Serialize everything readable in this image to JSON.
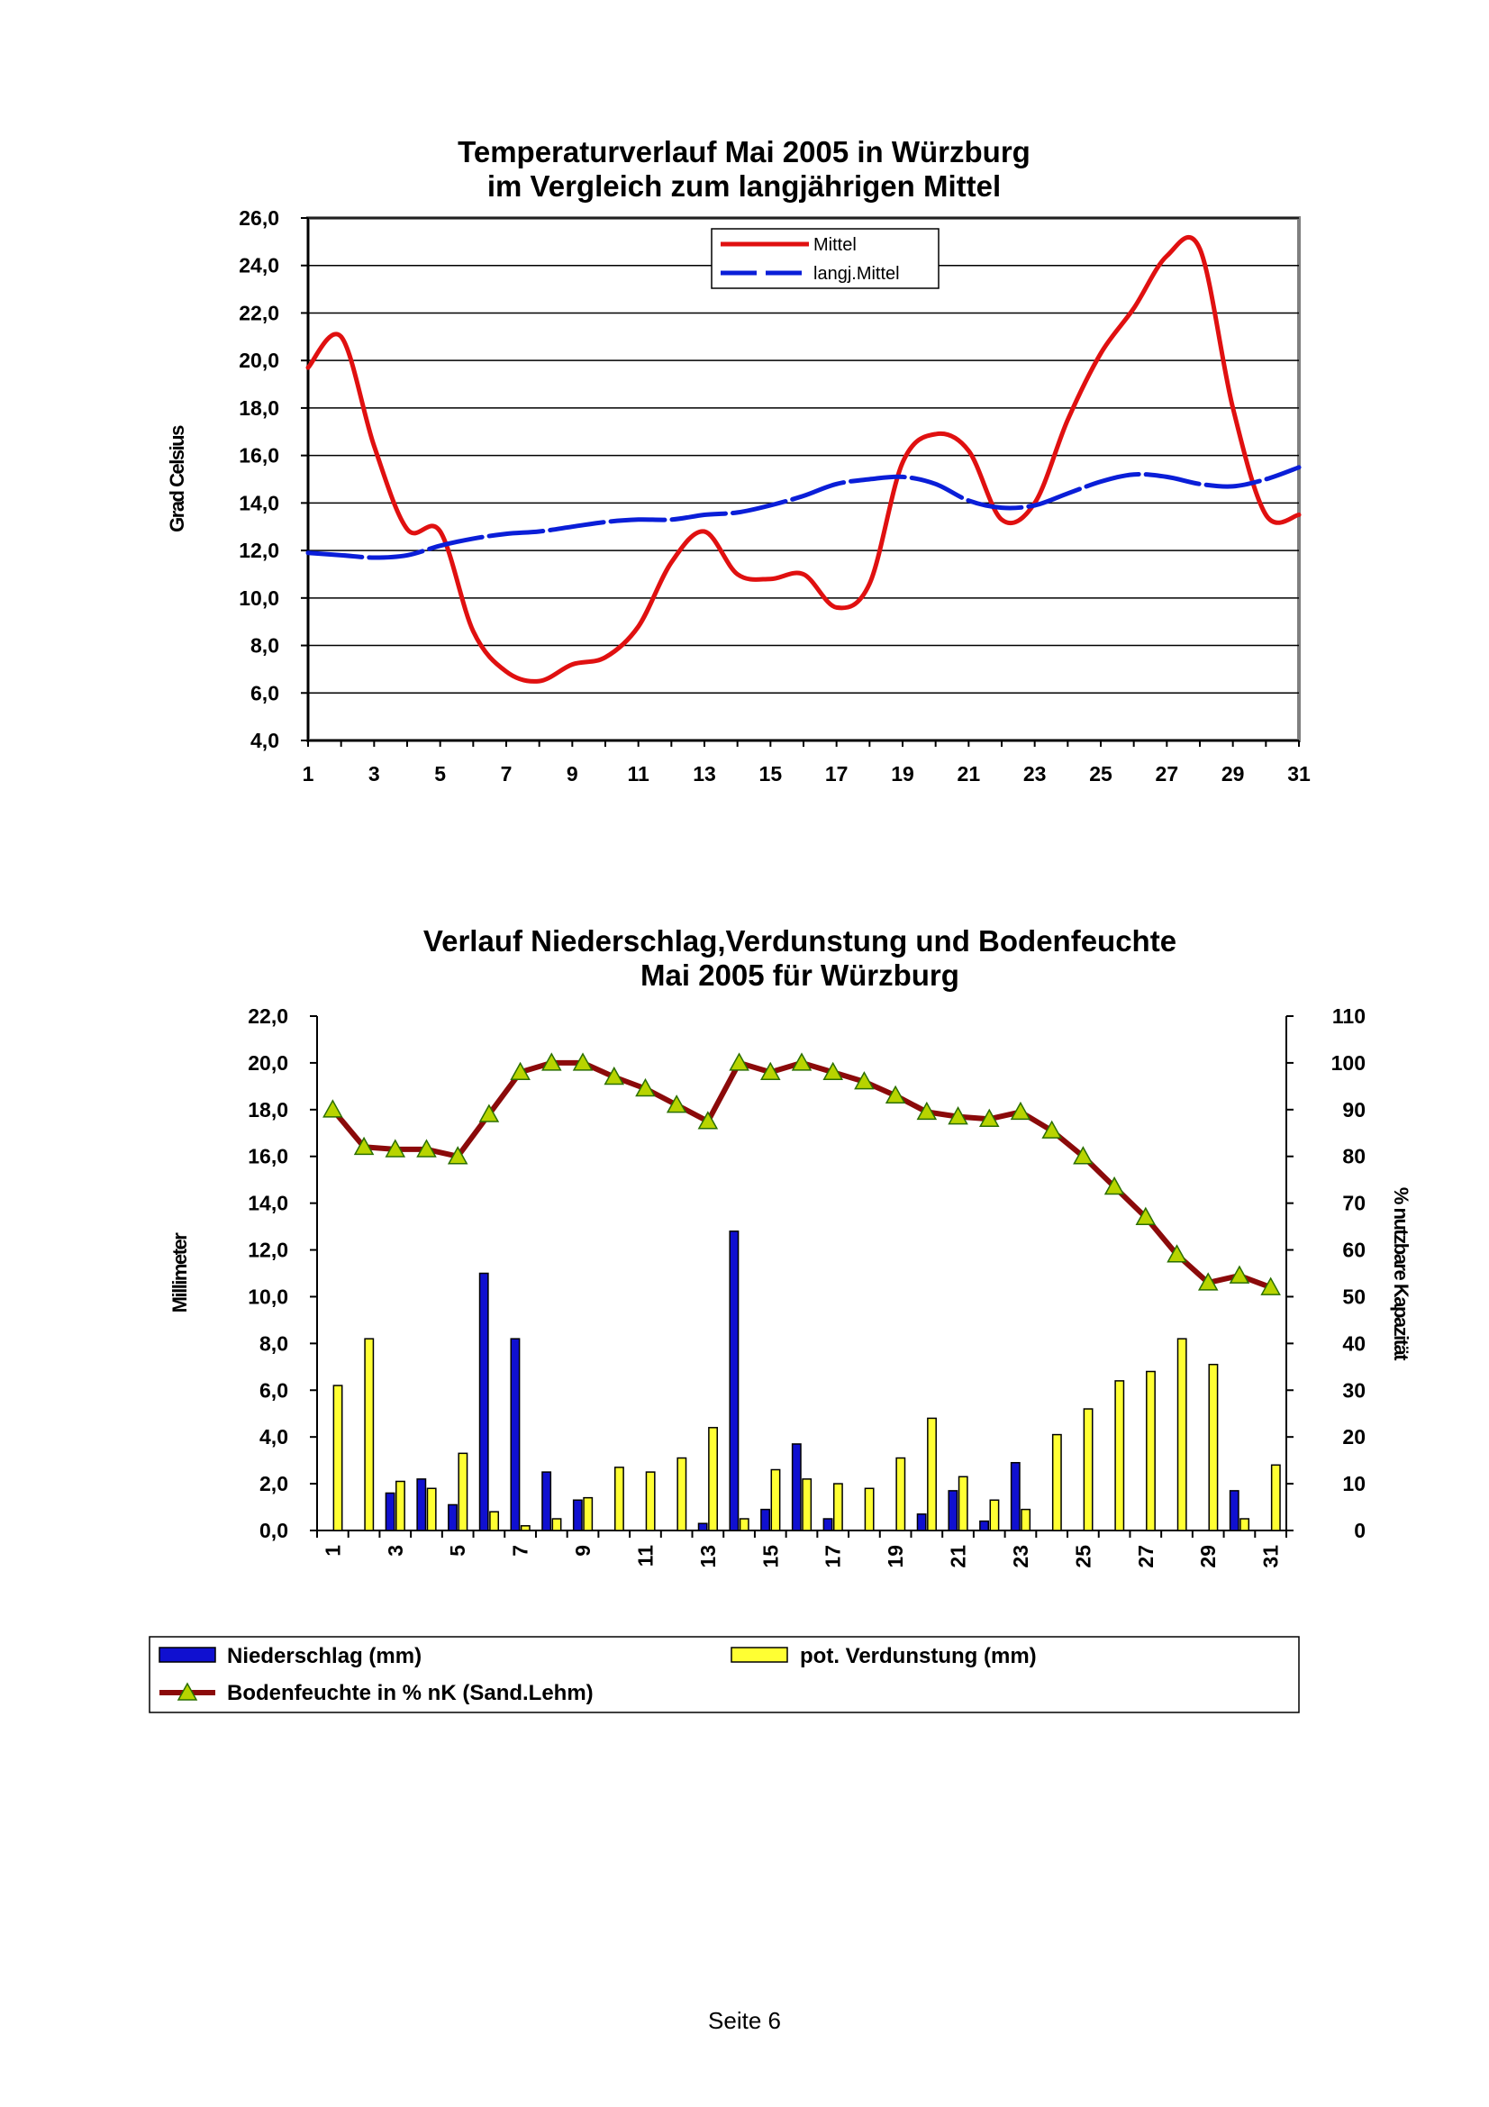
{
  "footer": {
    "page_label": "Seite 6"
  },
  "colors": {
    "mittel": "#e01010",
    "langj": "#0a1ed8",
    "niederschlag": "#1010d0",
    "verdunstung": "#ffff33",
    "bodenfeuchte_line": "#8b0a0a",
    "bodenfeuchte_marker": "#b8d400",
    "gridline": "#000000"
  },
  "chart_data": [
    {
      "type": "line",
      "title": "Temperaturverlauf Mai 2005 in Würzburg",
      "subtitle": "im Vergleich zum langjährigen Mittel",
      "ylabel": "Grad Celsius",
      "xlabel": "",
      "ylim": [
        4,
        26
      ],
      "yticks": [
        "4,0",
        "6,0",
        "8,0",
        "10,0",
        "12,0",
        "14,0",
        "16,0",
        "18,0",
        "20,0",
        "22,0",
        "24,0",
        "26,0"
      ],
      "xticks": [
        "1",
        "3",
        "5",
        "7",
        "9",
        "11",
        "13",
        "15",
        "17",
        "19",
        "21",
        "23",
        "25",
        "27",
        "29",
        "31"
      ],
      "grid": true,
      "legend_position": "top-center",
      "x": [
        1,
        2,
        3,
        4,
        5,
        6,
        7,
        8,
        9,
        10,
        11,
        12,
        13,
        14,
        15,
        16,
        17,
        18,
        19,
        20,
        21,
        22,
        23,
        24,
        25,
        26,
        27,
        28,
        29,
        30,
        31
      ],
      "series": [
        {
          "name": "Mittel",
          "style": "solid",
          "values": [
            19.7,
            21.0,
            16.4,
            12.9,
            12.8,
            8.6,
            6.9,
            6.5,
            7.2,
            7.5,
            8.8,
            11.5,
            12.8,
            11.0,
            10.8,
            11.0,
            9.6,
            10.6,
            15.7,
            16.9,
            16.2,
            13.3,
            14.0,
            17.5,
            20.3,
            22.2,
            24.4,
            24.7,
            18.0,
            13.5,
            13.5
          ]
        },
        {
          "name": "langj.Mittel",
          "style": "dashed",
          "values": [
            11.9,
            11.8,
            11.7,
            11.8,
            12.2,
            12.5,
            12.7,
            12.8,
            13.0,
            13.2,
            13.3,
            13.3,
            13.5,
            13.6,
            13.9,
            14.3,
            14.8,
            15.0,
            15.1,
            14.8,
            14.1,
            13.8,
            13.9,
            14.4,
            14.9,
            15.2,
            15.1,
            14.8,
            14.7,
            15.0,
            15.5
          ]
        }
      ]
    },
    {
      "type": "bar",
      "title": "Verlauf Niederschlag,Verdunstung und Bodenfeuchte",
      "subtitle": "Mai 2005 für Würzburg",
      "ylabel": "Millimeter",
      "y2label": "% nutzbare Kapazität",
      "ylim": [
        0,
        22
      ],
      "y2lim": [
        0,
        110
      ],
      "yticks": [
        "0,0",
        "2,0",
        "4,0",
        "6,0",
        "8,0",
        "10,0",
        "12,0",
        "14,0",
        "16,0",
        "18,0",
        "20,0",
        "22,0"
      ],
      "y2ticks": [
        "0",
        "10",
        "20",
        "30",
        "40",
        "50",
        "60",
        "70",
        "80",
        "90",
        "100",
        "110"
      ],
      "xticks": [
        "1",
        "3",
        "5",
        "7",
        "9",
        "11",
        "13",
        "15",
        "17",
        "19",
        "21",
        "23",
        "25",
        "27",
        "29",
        "31"
      ],
      "grid": false,
      "legend_position": "bottom",
      "x": [
        1,
        2,
        3,
        4,
        5,
        6,
        7,
        8,
        9,
        10,
        11,
        12,
        13,
        14,
        15,
        16,
        17,
        18,
        19,
        20,
        21,
        22,
        23,
        24,
        25,
        26,
        27,
        28,
        29,
        30,
        31
      ],
      "series": [
        {
          "name": "Niederschlag (mm)",
          "kind": "bar",
          "axis": "left",
          "values": [
            0,
            0,
            1.6,
            2.2,
            1.1,
            11.0,
            8.2,
            2.5,
            1.3,
            0,
            0,
            0,
            0.3,
            12.8,
            0.9,
            3.7,
            0.5,
            0,
            0,
            0.7,
            1.7,
            0.4,
            2.9,
            0,
            0,
            0,
            0,
            0,
            0,
            1.7,
            0
          ]
        },
        {
          "name": "pot. Verdunstung (mm)",
          "kind": "bar",
          "axis": "left",
          "values": [
            6.2,
            8.2,
            2.1,
            1.8,
            3.3,
            0.8,
            0.2,
            0.5,
            1.4,
            2.7,
            2.5,
            3.1,
            4.4,
            0.5,
            2.6,
            2.2,
            2.0,
            1.8,
            3.1,
            4.8,
            2.3,
            1.3,
            0.9,
            4.1,
            5.2,
            6.4,
            6.8,
            8.2,
            7.1,
            0.5,
            2.8
          ]
        },
        {
          "name": "Bodenfeuchte in % nK (Sand.Lehm)",
          "kind": "line",
          "axis": "right",
          "values": [
            90,
            82,
            81.5,
            81.5,
            80,
            89,
            98,
            100,
            100,
            97,
            94.5,
            91,
            87.5,
            100,
            98,
            100,
            98,
            96,
            93,
            89.5,
            88.5,
            88,
            89.5,
            85.5,
            80,
            73.5,
            67,
            59,
            53,
            54.5,
            52
          ]
        }
      ]
    }
  ]
}
